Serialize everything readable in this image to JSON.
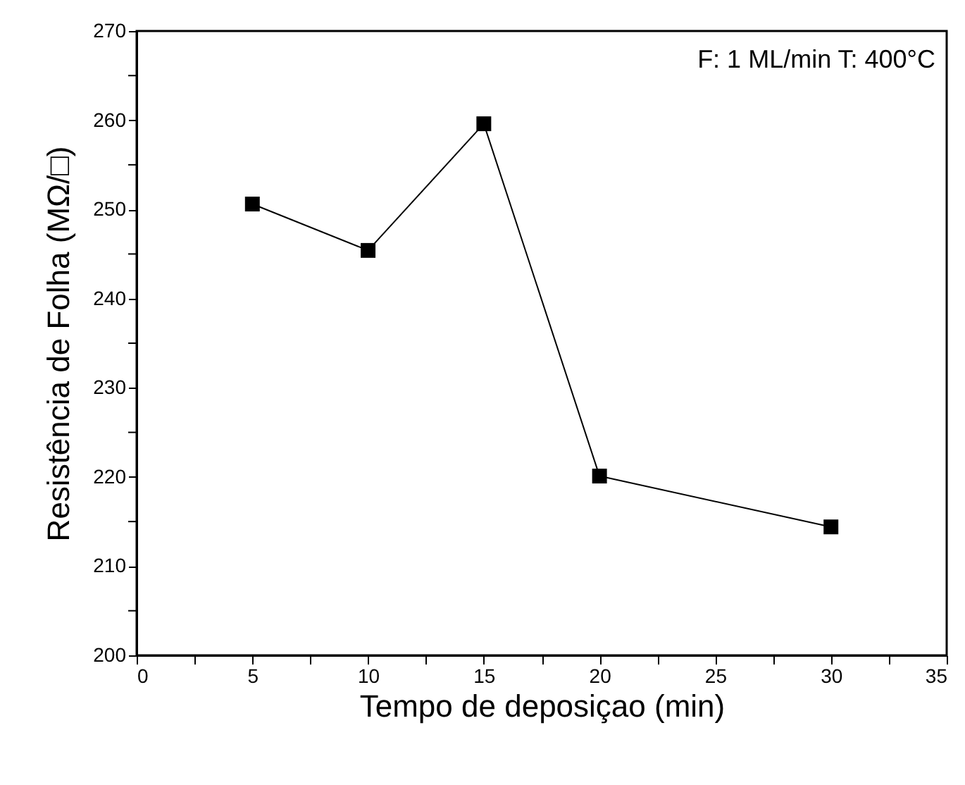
{
  "chart_data": {
    "type": "line",
    "xlabel": "Tempo de deposiçao (min)",
    "ylabel": "Resistência de Folha (MΩ/□)",
    "annotations": [
      "F: 1 ML/min T: 400°C"
    ],
    "x": [
      5,
      10,
      15,
      20,
      30
    ],
    "series": [
      {
        "color": "#000000",
        "values": [
          250.6,
          245.4,
          259.6,
          220.1,
          214.4
        ]
      }
    ],
    "xlim": [
      0,
      35
    ],
    "ylim": [
      200,
      270
    ],
    "xticks": [
      0,
      {
        "value": 2.5,
        "label": null
      },
      5,
      {
        "value": 7.5,
        "label": null
      },
      10,
      {
        "value": 12.5,
        "label": null
      },
      15,
      {
        "value": 17.5,
        "label": null
      },
      20,
      {
        "value": 22.5,
        "label": null
      },
      25,
      {
        "value": 27.5,
        "label": null
      },
      30,
      {
        "value": 32.5,
        "label": null
      },
      35
    ],
    "yticks": [
      200,
      {
        "value": 205,
        "label": null
      },
      210,
      {
        "value": 215,
        "label": null
      },
      220,
      {
        "value": 225,
        "label": null
      },
      230,
      {
        "value": 235,
        "label": null
      },
      240,
      {
        "value": 245,
        "label": null
      },
      250,
      {
        "value": 255,
        "label": null
      },
      260,
      {
        "value": 265,
        "label": null
      },
      270
    ],
    "grid": false,
    "marker": "square",
    "line_style": "solid"
  }
}
